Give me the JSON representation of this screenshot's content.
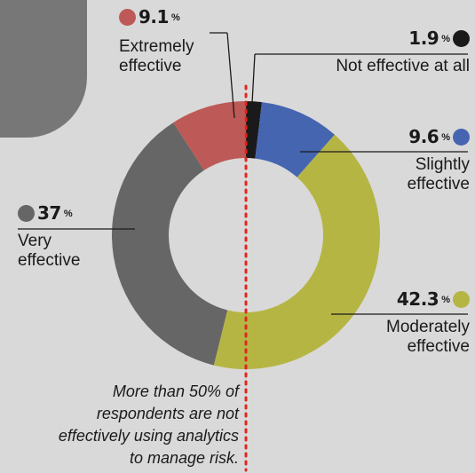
{
  "chart_data": {
    "type": "pie",
    "categories": [
      "Not effective at all",
      "Slightly effective",
      "Moderately effective",
      "Very effective",
      "Extremely effective"
    ],
    "values": [
      1.9,
      9.6,
      42.3,
      37,
      9.1
    ],
    "value_labels": [
      "1.9",
      "9.6",
      "42.3",
      "37",
      "9.1"
    ],
    "percent_sign": "%",
    "colors": [
      "#1a1a1a",
      "#4565b1",
      "#b5b544",
      "#666666",
      "#bd5a57"
    ],
    "donut": true,
    "annotation": "More than 50% of respondents are not effectively using analytics to manage risk."
  },
  "labels": {
    "not_effective": {
      "pct": "1.9",
      "line1": "Not effective at all"
    },
    "slightly": {
      "pct": "9.6",
      "line1": "Slightly",
      "line2": "effective"
    },
    "moderately": {
      "pct": "42.3",
      "line1": "Moderately",
      "line2": "effective"
    },
    "very": {
      "pct": "37",
      "line1": "Very",
      "line2": "effective"
    },
    "extremely": {
      "pct": "9.1",
      "line1": "Extremely",
      "line2": "effective"
    },
    "sign": "%"
  },
  "note": {
    "line1": "More than 50% of",
    "line2": "respondents are not",
    "line3": "effectively using analytics",
    "line4": "to manage risk."
  }
}
